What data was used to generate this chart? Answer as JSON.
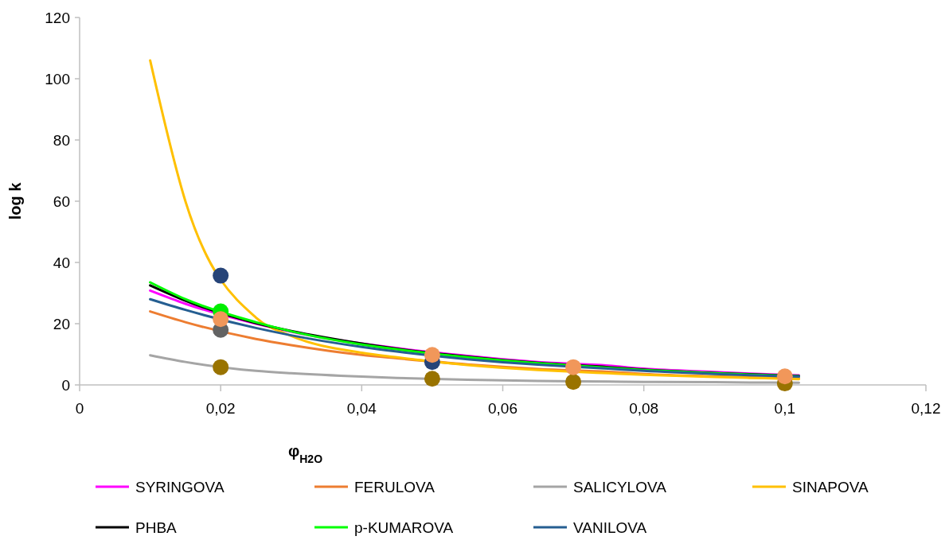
{
  "chart_data": {
    "type": "line",
    "xlabel": "φ$_{H2O}$",
    "ylabel": "log k",
    "x": [
      0.01,
      0.015,
      0.025,
      0.03,
      0.04,
      0.045,
      0.055,
      0.06,
      0.065,
      0.075,
      0.08,
      0.09,
      0.095,
      0.102
    ],
    "series": [
      {
        "name": "SYRINGOVA",
        "color": "#ff00ff",
        "values": [
          30.8,
          26.5,
          20,
          17.4,
          13.5,
          12,
          9.5,
          8.4,
          7.5,
          6.3,
          5.3,
          4.2,
          3.7,
          3.1
        ]
      },
      {
        "name": "FERULOVA",
        "color": "#ed7d31",
        "values": [
          24,
          20.5,
          15,
          13,
          9.8,
          8.7,
          6.7,
          5.9,
          5.2,
          4.3,
          3.6,
          2.8,
          2.5,
          2.1
        ]
      },
      {
        "name": "SALICYLOVA",
        "color": "#a5a5a5",
        "values": [
          9.7,
          7.5,
          4.6,
          3.8,
          2.7,
          2.3,
          1.7,
          1.5,
          1.3,
          1.1,
          1,
          0.9,
          0.8,
          0.7
        ]
      },
      {
        "name": "SINAPOVA",
        "color": "#ffc000",
        "values": [
          106,
          60,
          22,
          16,
          10.5,
          9,
          6.5,
          5.6,
          4.9,
          3.8,
          3.3,
          2.6,
          2.3,
          1.9
        ]
      },
      {
        "name": "PHBA",
        "color": "#000000",
        "values": [
          32.5,
          27.5,
          20.2,
          17.6,
          13.5,
          11.8,
          9.2,
          8.1,
          7.2,
          5.8,
          5,
          3.9,
          3.5,
          2.9
        ]
      },
      {
        "name": "p-KUMAROVA",
        "color": "#00ff00",
        "values": [
          33.5,
          28,
          20.5,
          17.5,
          13.2,
          11.6,
          9,
          8,
          7.1,
          5.6,
          4.9,
          3.8,
          3.4,
          2.8
        ]
      },
      {
        "name": "VANILOVA",
        "color": "#255e91",
        "values": [
          28,
          24.5,
          18.6,
          16.2,
          12.4,
          10.9,
          8.4,
          7.4,
          6.6,
          5.3,
          4.6,
          3.6,
          3.2,
          2.7
        ]
      },
      {
        "type": "scatter",
        "marker": "circle",
        "color": "#264478",
        "x": [
          0.02,
          0.05
        ],
        "values": [
          35.7,
          7.5
        ]
      },
      {
        "type": "scatter",
        "marker": "circle",
        "color": "#00ee00",
        "x": [
          0.02
        ],
        "values": [
          24
        ]
      },
      {
        "type": "scatter",
        "marker": "circle",
        "color": "#636363",
        "x": [
          0.02
        ],
        "values": [
          18
        ]
      },
      {
        "type": "scatter",
        "marker": "circle",
        "color": "#997300",
        "x": [
          0.02,
          0.05,
          0.07,
          0.1
        ],
        "values": [
          5.8,
          2,
          1,
          0.5
        ]
      },
      {
        "type": "scatter",
        "marker": "circle",
        "color": "#f1975a",
        "x": [
          0.02,
          0.05,
          0.07,
          0.1
        ],
        "values": [
          21.5,
          9.8,
          5.8,
          2.8
        ]
      }
    ],
    "xlim": [
      0,
      0.12
    ],
    "xticks": [
      0,
      {
        "value": 0.02,
        "label": "0,02"
      },
      {
        "value": 0.04,
        "label": "0,04"
      },
      {
        "value": 0.06,
        "label": "0,06"
      },
      {
        "value": 0.08,
        "label": "0,08"
      },
      {
        "value": 0.1,
        "label": "0,1"
      },
      {
        "value": 0.12,
        "label": "0,12"
      }
    ],
    "ylim": [
      0,
      120
    ],
    "yticks": [
      0,
      20,
      40,
      60,
      80,
      100,
      120
    ],
    "line_style": "solid",
    "grid": false,
    "legend": "bottom"
  }
}
